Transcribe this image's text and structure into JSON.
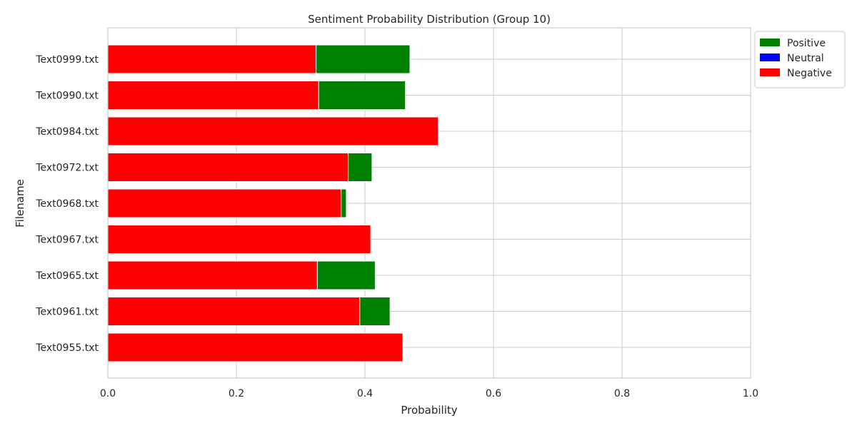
{
  "chart_data": {
    "type": "bar",
    "orientation": "horizontal",
    "stacked": true,
    "title": "Sentiment Probability Distribution (Group 10)",
    "xlabel": "Probability",
    "ylabel": "Filename",
    "xlim": [
      0,
      1
    ],
    "xticks": [
      "0.0",
      "0.2",
      "0.4",
      "0.6",
      "0.8",
      "1.0"
    ],
    "grid": true,
    "legend_position": "top-right outside",
    "categories": [
      "Text0999.txt",
      "Text0990.txt",
      "Text0984.txt",
      "Text0972.txt",
      "Text0968.txt",
      "Text0967.txt",
      "Text0965.txt",
      "Text0961.txt",
      "Text0955.txt"
    ],
    "series": [
      {
        "name": "Negative",
        "color": "#ff0000",
        "values": [
          0.324,
          0.328,
          0.514,
          0.374,
          0.363,
          0.409,
          0.326,
          0.392,
          0.459
        ]
      },
      {
        "name": "Neutral",
        "color": "#0000ff",
        "values": [
          0,
          0,
          0,
          0,
          0,
          0,
          0,
          0,
          0
        ]
      },
      {
        "name": "Positive",
        "color": "#008000",
        "values": [
          0.146,
          0.135,
          0,
          0.037,
          0.008,
          0,
          0.09,
          0.047,
          0
        ]
      }
    ],
    "legend_order": [
      "Positive",
      "Neutral",
      "Negative"
    ]
  }
}
